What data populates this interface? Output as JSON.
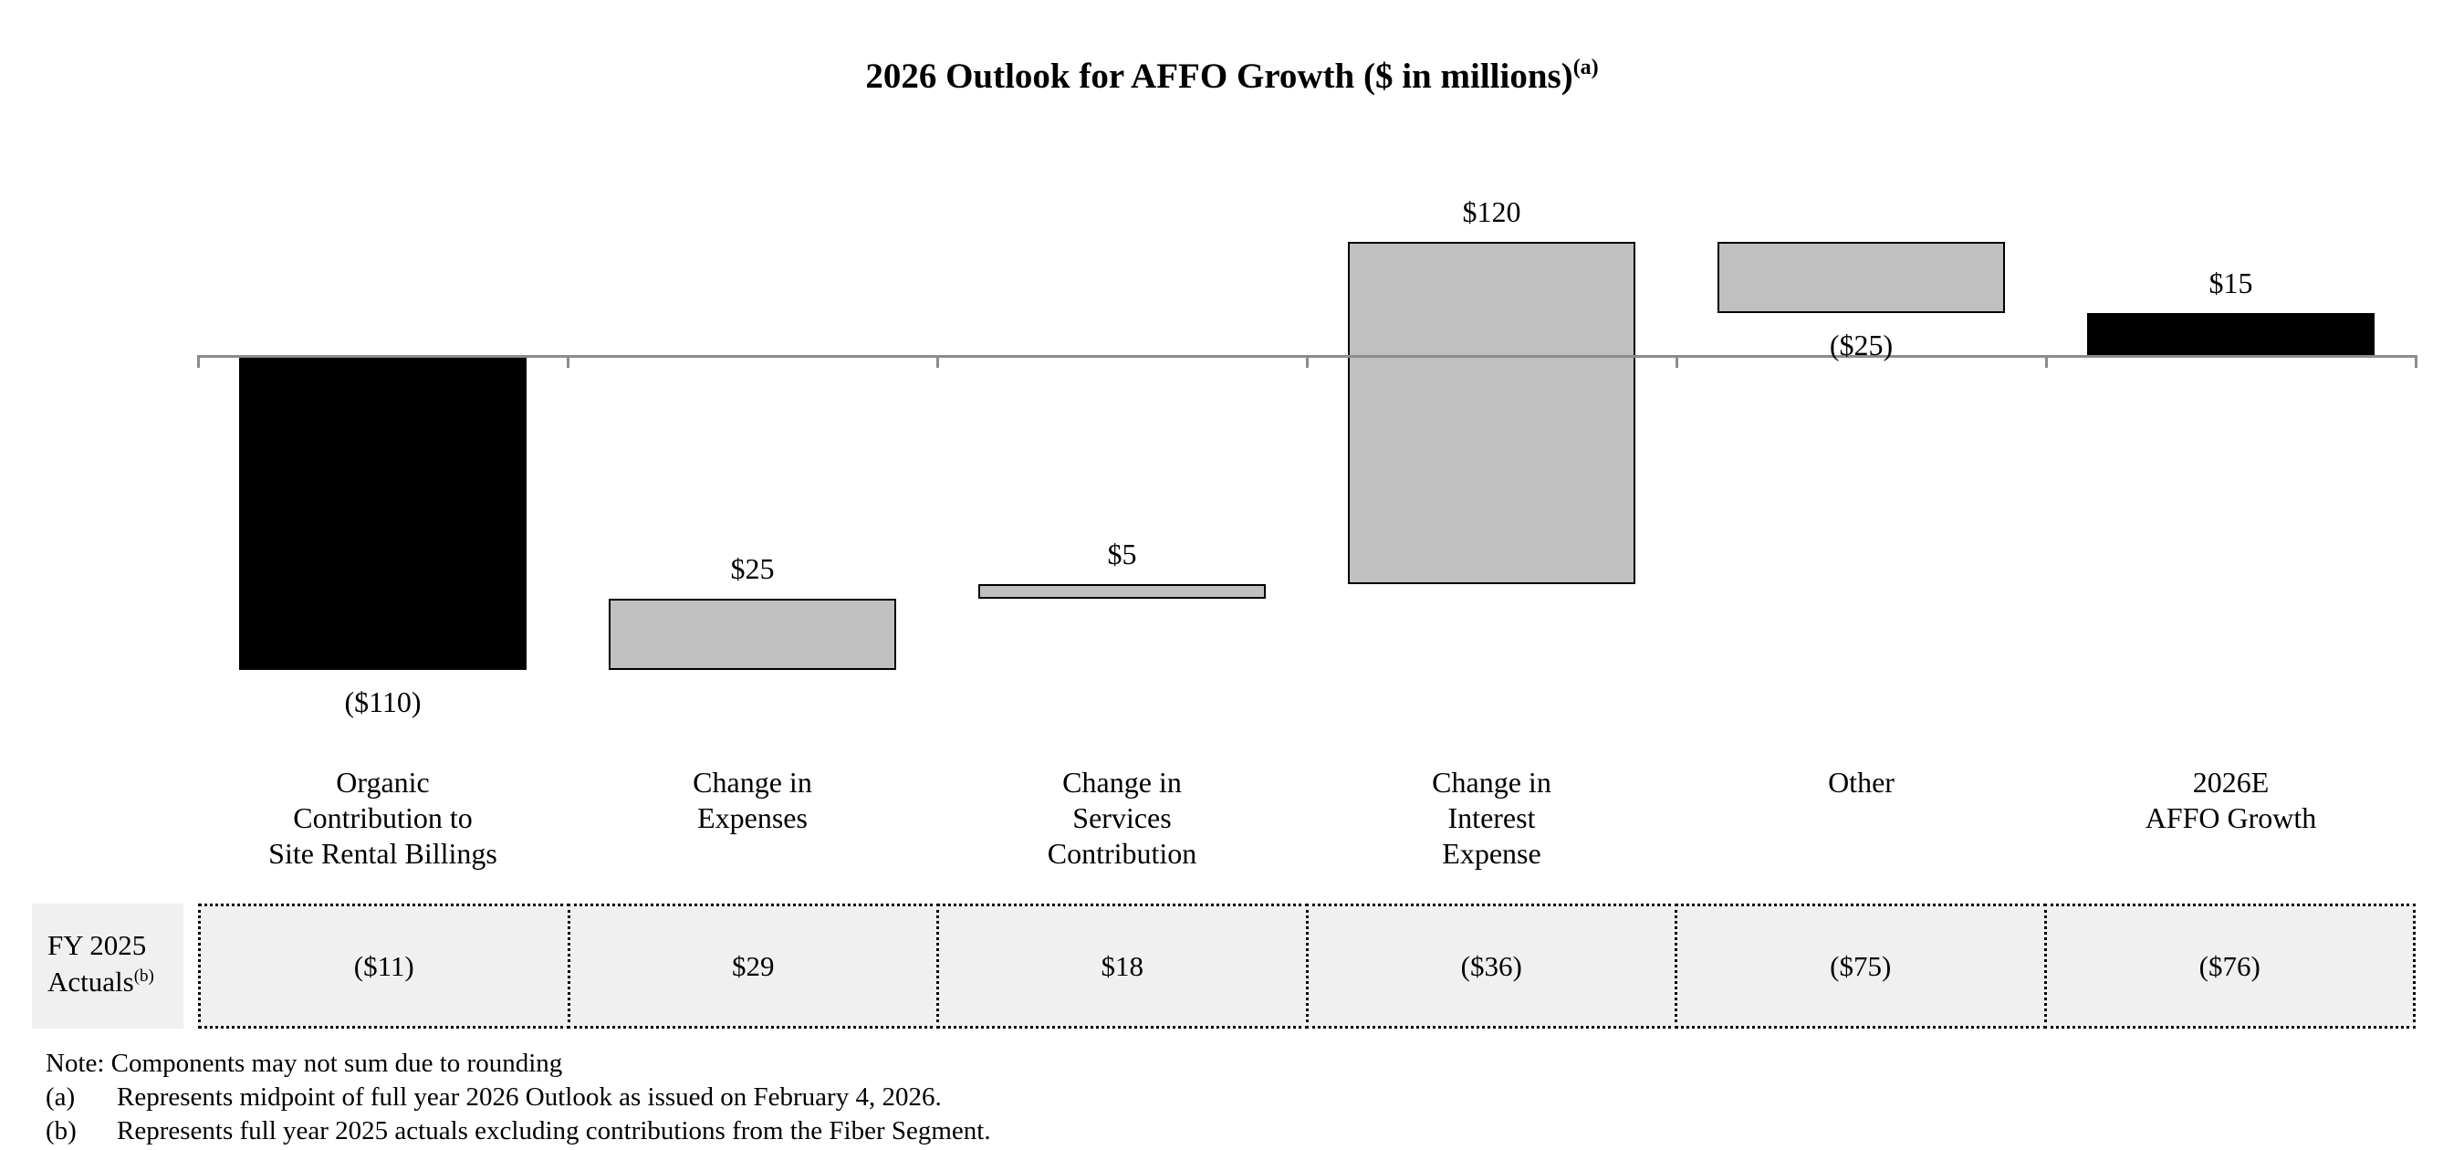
{
  "title": {
    "text": "2026 Outlook for AFFO Growth ($ in millions)",
    "note_ref": "(a)"
  },
  "chart_data": {
    "type": "waterfall-bar",
    "title": "2026 Outlook for AFFO Growth ($ in millions)",
    "unit": "$ in millions",
    "ylim": [
      -110,
      40
    ],
    "grid": false,
    "categories": [
      [
        "Organic",
        "Contribution to",
        "Site Rental Billings"
      ],
      [
        "Change in",
        "Expenses"
      ],
      [
        "Change in",
        "Services",
        "Contribution"
      ],
      [
        "Change in",
        "Interest",
        "Expense"
      ],
      [
        "Other"
      ],
      [
        "2026E",
        "AFFO Growth"
      ]
    ],
    "steps": [
      {
        "name": "Organic Contribution to Site Rental Billings",
        "label": "($110)",
        "value": -110,
        "start": 0,
        "end": -110,
        "color": "black",
        "label_position": "below"
      },
      {
        "name": "Change in Expenses",
        "label": "$25",
        "value": 25,
        "start": -110,
        "end": -85,
        "color": "gray",
        "label_position": "above"
      },
      {
        "name": "Change in Services Contribution",
        "label": "$5",
        "value": 5,
        "start": -85,
        "end": -80,
        "color": "gray",
        "label_position": "above"
      },
      {
        "name": "Change in Interest Expense",
        "label": "$120",
        "value": 120,
        "start": -80,
        "end": 40,
        "color": "gray",
        "label_position": "above"
      },
      {
        "name": "Other",
        "label": "($25)",
        "value": -25,
        "start": 40,
        "end": 15,
        "color": "gray",
        "label_position": "below"
      },
      {
        "name": "2026E AFFO Growth",
        "label": "$15",
        "value": 15,
        "start": 0,
        "end": 15,
        "color": "black",
        "label_position": "above"
      }
    ],
    "colors": {
      "black_bar": "#000000",
      "gray_bar": "#c0c0c0",
      "bar_border": "#000000",
      "axis": "#8c8c8c",
      "table_background": "#f0f0f0"
    }
  },
  "table": {
    "header_lines": [
      "FY 2025",
      "Actuals"
    ],
    "header_note_ref": "(b)",
    "values": [
      "($11)",
      "$29",
      "$18",
      "($36)",
      "($75)",
      "($76)"
    ]
  },
  "notes": {
    "rounding": "Note: Components may not sum due to rounding",
    "a_marker": "(a)",
    "a_text": "Represents midpoint of full year 2026 Outlook as issued on February 4, 2026.",
    "b_marker": "(b)",
    "b_text": "Represents full year 2025 actuals excluding contributions from the Fiber Segment."
  }
}
